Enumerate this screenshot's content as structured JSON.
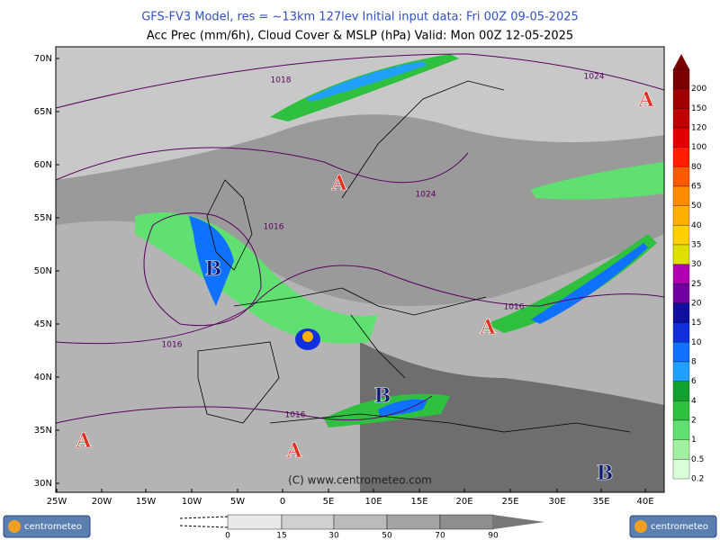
{
  "header": {
    "line1": "GFS-FV3 Model, res = ~13km 127lev   Initial input data: Fri 00Z 09-05-2025",
    "line2": "Acc Prec (mm/6h), Cloud Cover & MSLP (hPa)  Valid: Mon 00Z 12-05-2025"
  },
  "latitude_labels": [
    "70N",
    "65N",
    "60N",
    "55N",
    "50N",
    "45N",
    "40N",
    "35N",
    "30N"
  ],
  "longitude_labels": [
    "25W",
    "20W",
    "15W",
    "10W",
    "5W",
    "0",
    "5E",
    "10E",
    "15E",
    "20E",
    "25E",
    "30E",
    "35E",
    "40E"
  ],
  "isobar_labels": [
    "1018",
    "1024",
    "1024",
    "1016",
    "1016",
    "1016",
    "1016"
  ],
  "pressure_centers": [
    "A",
    "A",
    "B",
    "A",
    "B",
    "A",
    "A",
    "B"
  ],
  "precip_scale": {
    "labels": [
      "200",
      "150",
      "120",
      "100",
      "80",
      "65",
      "50",
      "40",
      "35",
      "30",
      "25",
      "20",
      "15",
      "10",
      "8",
      "6",
      "4",
      "2",
      "1",
      "0.5",
      "0.2"
    ],
    "colors": [
      "#7a0000",
      "#a00000",
      "#c00000",
      "#e00000",
      "#ff2000",
      "#ff5a00",
      "#ff8c00",
      "#ffb000",
      "#ffd000",
      "#e0e000",
      "#b000b0",
      "#7000a0",
      "#1010a0",
      "#1030e0",
      "#1070ff",
      "#20a0ff",
      "#10a030",
      "#30c040",
      "#60e070",
      "#a0f0a0",
      "#d8ffd8"
    ]
  },
  "cloud_scale": {
    "labels": [
      "0",
      "15",
      "30",
      "50",
      "70",
      "90"
    ]
  },
  "watermark": "(C) www.centrometeo.com",
  "logos": [
    "centrometeo",
    "centrometeo"
  ]
}
